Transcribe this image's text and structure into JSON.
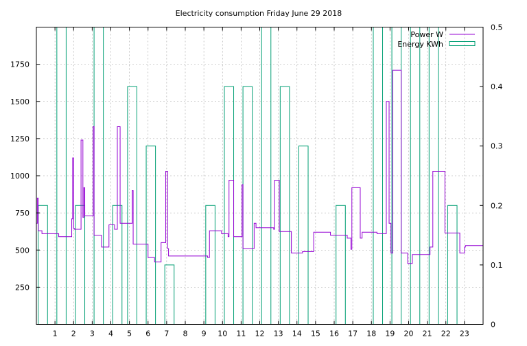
{
  "chart_data": {
    "type": "line",
    "title": "Electricity consumption Friday June 29 2018",
    "xlabel": "",
    "ylabel": "",
    "xlim": [
      0,
      24
    ],
    "ylim": [
      0,
      2000
    ],
    "y2lim": [
      0,
      0.5
    ],
    "x_ticks": [
      "1",
      "2",
      "3",
      "4",
      "5",
      "6",
      "7",
      "8",
      "9",
      "10",
      "11",
      "12",
      "13",
      "14",
      "15",
      "16",
      "17",
      "18",
      "19",
      "20",
      "21",
      "22",
      "23"
    ],
    "x_tick_values": [
      1,
      2,
      3,
      4,
      5,
      6,
      7,
      8,
      9,
      10,
      11,
      12,
      13,
      14,
      15,
      16,
      17,
      18,
      19,
      20,
      21,
      22,
      23
    ],
    "y_ticks": [
      "250",
      "500",
      "750",
      "1000",
      "1250",
      "1500",
      "1750"
    ],
    "y_tick_values": [
      250,
      500,
      750,
      1000,
      1250,
      1500,
      1750
    ],
    "y2_ticks": [
      "0",
      "0.1",
      "0.2",
      "0.3",
      "0.4",
      "0.5"
    ],
    "y2_tick_values": [
      0,
      0.1,
      0.2,
      0.3,
      0.4,
      0.5
    ],
    "grid": true,
    "legend_position": "top-right",
    "colors": {
      "power": "#9400d3",
      "energy": "#009e73",
      "grid": "#a0a0a0"
    },
    "series": [
      {
        "name": "Power W",
        "axis": "y",
        "style": "steps",
        "x": [
          0,
          0.05,
          0.1,
          0.3,
          0.3,
          1.2,
          1.2,
          1.9,
          1.9,
          1.95,
          2.0,
          2.05,
          2.05,
          2.4,
          2.5,
          2.55,
          2.6,
          2.9,
          3.05,
          3.1,
          3.5,
          3.9,
          4.2,
          4.35,
          4.5,
          5.15,
          5.2,
          5.9,
          6.0,
          6.35,
          6.7,
          6.95,
          7.05,
          7.1,
          8.0,
          9.2,
          9.3,
          9.95,
          10.3,
          10.35,
          10.6,
          10.75,
          11.05,
          11.1,
          11.7,
          11.8,
          12.75,
          12.8,
          13.05,
          13.7,
          14.3,
          14.9,
          15.8,
          16.7,
          16.85,
          16.9,
          16.95,
          17.4,
          17.5,
          18.15,
          18.3,
          18.8,
          18.95,
          19.05,
          19.15,
          19.6,
          19.95,
          20.2,
          21.0,
          21.15,
          21.3,
          21.95,
          22.75,
          23.0,
          23.05,
          24.0
        ],
        "y": [
          680,
          850,
          630,
          630,
          610,
          610,
          590,
          590,
          710,
          1120,
          645,
          645,
          640,
          1240,
          720,
          920,
          730,
          730,
          1330,
          600,
          520,
          670,
          640,
          1330,
          680,
          900,
          540,
          540,
          450,
          420,
          550,
          1030,
          510,
          460,
          460,
          450,
          630,
          610,
          590,
          970,
          590,
          590,
          940,
          510,
          680,
          650,
          640,
          970,
          625,
          480,
          490,
          620,
          600,
          580,
          580,
          505,
          920,
          580,
          620,
          620,
          610,
          1500,
          680,
          480,
          1710,
          480,
          410,
          470,
          470,
          520,
          1030,
          615,
          480,
          520,
          530,
          680
        ]
      },
      {
        "name": "Energy KWh",
        "axis": "y2",
        "style": "boxes",
        "x": [
          0.1,
          1.1,
          2.1,
          3.1,
          4.1,
          4.9,
          5.9,
          6.9,
          9.1,
          10.1,
          11.1,
          12.1,
          13.1,
          14.1,
          16.1,
          18.1,
          19.1,
          20.1,
          21.1,
          22.1
        ],
        "y": [
          0.2,
          0.5,
          0.2,
          0.5,
          0.2,
          0.4,
          0.3,
          0.1,
          0.2,
          0.4,
          0.4,
          0.5,
          0.4,
          0.3,
          0.2,
          0.5,
          0.5,
          0.5,
          0.5,
          0.2
        ]
      }
    ]
  }
}
